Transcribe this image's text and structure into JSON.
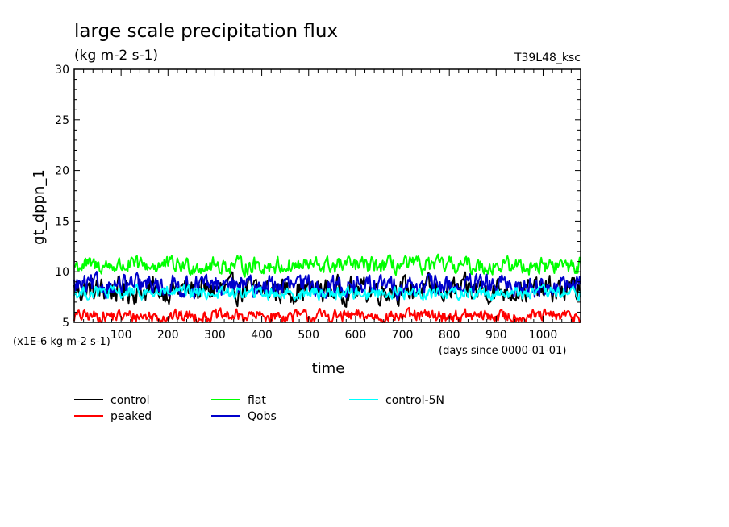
{
  "chart_data": {
    "type": "line",
    "title": "large scale precipitation flux",
    "subtitle": "(kg m-2 s-1)",
    "run_label": "T39L48_ksc",
    "ylabel": "gt_dppn_1",
    "xlabel": "time",
    "y_scale_note": "(x1E-6 kg m-2 s-1)",
    "x_unit_note": "(days since 0000-01-01)",
    "xlim": [
      0,
      1080
    ],
    "ylim": [
      5,
      30
    ],
    "x_ticks": [
      100,
      200,
      300,
      400,
      500,
      600,
      700,
      800,
      900,
      1000
    ],
    "x_tick_labels": [
      "100",
      "200",
      "300",
      "400",
      "500",
      "600",
      "700",
      "800",
      "900",
      "1000"
    ],
    "y_ticks": [
      5,
      10,
      15,
      20,
      25,
      30
    ],
    "y_tick_labels": [
      "5",
      "10",
      "15",
      "20",
      "25",
      "30"
    ],
    "grid": false,
    "legend_position": "below plot",
    "series": [
      {
        "name": "control",
        "color": "#000000",
        "mean": 8.2,
        "spread": 1.2,
        "min": 6.5,
        "max": 10.3
      },
      {
        "name": "peaked",
        "color": "#ff0000",
        "mean": 5.6,
        "spread": 0.6,
        "min": 5.0,
        "max": 7.0
      },
      {
        "name": "flat",
        "color": "#00ff00",
        "mean": 10.6,
        "spread": 0.8,
        "min": 9.0,
        "max": 12.6
      },
      {
        "name": "Qobs",
        "color": "#0000cc",
        "mean": 8.6,
        "spread": 1.0,
        "min": 7.0,
        "max": 10.8
      },
      {
        "name": "control-5N",
        "color": "#00ffff",
        "mean": 7.9,
        "spread": 0.6,
        "min": 6.6,
        "max": 9.5
      }
    ]
  }
}
